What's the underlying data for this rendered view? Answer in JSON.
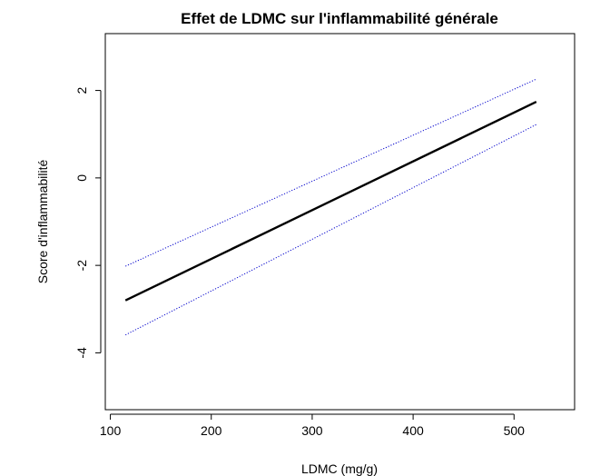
{
  "chart_data": {
    "type": "line",
    "title": "Effet de LDMC sur l'inflammabilité générale",
    "xlabel": "LDMC (mg/g)",
    "ylabel": "Score d'inflammabilité",
    "xlim": [
      95,
      560
    ],
    "ylim": [
      -5.3,
      3.3
    ],
    "xticks": [
      100,
      200,
      300,
      400,
      500
    ],
    "yticks": [
      -4,
      -2,
      0,
      2
    ],
    "grid": false,
    "series": [
      {
        "role": "fit",
        "x": [
          115,
          522
        ],
        "y": [
          -2.8,
          1.74
        ],
        "color": "#000000",
        "style": "solid"
      },
      {
        "role": "upper-confidence-band",
        "x": [
          115,
          522
        ],
        "y": [
          -2.02,
          2.26
        ],
        "color": "#0000cc",
        "style": "dotted"
      },
      {
        "role": "lower-confidence-band",
        "x": [
          115,
          522
        ],
        "y": [
          -3.59,
          1.22
        ],
        "color": "#0000cc",
        "style": "dotted"
      }
    ]
  }
}
